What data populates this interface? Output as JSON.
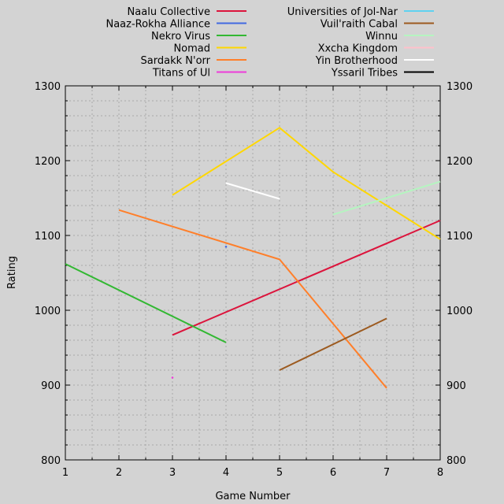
{
  "chart_data": {
    "type": "line",
    "xlabel": "Game Number",
    "ylabel": "Rating",
    "xlim": [
      1,
      8
    ],
    "ylim": [
      800,
      1300
    ],
    "x_ticks": [
      1,
      2,
      3,
      4,
      5,
      6,
      7,
      8
    ],
    "y_ticks": [
      800,
      900,
      1000,
      1100,
      1200,
      1300
    ],
    "grid": true,
    "legend_position": "top",
    "series": [
      {
        "name": "Naalu Collective",
        "color": "#dc143c",
        "points": [
          [
            3,
            967
          ],
          [
            8,
            1120
          ]
        ]
      },
      {
        "name": "Naaz-Rokha Alliance",
        "color": "#4169e1",
        "points": [
          [
            4,
            1085
          ]
        ]
      },
      {
        "name": "Nekro Virus",
        "color": "#32b832",
        "points": [
          [
            1,
            1062
          ],
          [
            4,
            957
          ]
        ]
      },
      {
        "name": "Nomad",
        "color": "#ffd700",
        "points": [
          [
            3,
            1154
          ],
          [
            5,
            1244
          ],
          [
            6,
            1185
          ],
          [
            8,
            1095
          ]
        ]
      },
      {
        "name": "Sardakk N'orr",
        "color": "#ff7f2a",
        "points": [
          [
            2,
            1134
          ],
          [
            5,
            1068
          ],
          [
            7,
            896
          ]
        ]
      },
      {
        "name": "Titans of Ul",
        "color": "#ee3bd9",
        "points": [
          [
            3,
            910
          ]
        ]
      },
      {
        "name": "Universities of Jol-Nar",
        "color": "#5fd2f0",
        "points": []
      },
      {
        "name": "Vuil'raith Cabal",
        "color": "#9c5a1f",
        "points": [
          [
            5,
            920
          ],
          [
            7,
            989
          ]
        ]
      },
      {
        "name": "Winnu",
        "color": "#b5f5c0",
        "points": [
          [
            6,
            1128
          ],
          [
            8,
            1172
          ]
        ]
      },
      {
        "name": "Xxcha Kingdom",
        "color": "#ffc0cb",
        "points": []
      },
      {
        "name": "Yin Brotherhood",
        "color": "#ffffff",
        "points": [
          [
            4,
            1170
          ],
          [
            5,
            1149
          ]
        ]
      },
      {
        "name": "Yssaril Tribes",
        "color": "#000000",
        "points": []
      }
    ]
  }
}
